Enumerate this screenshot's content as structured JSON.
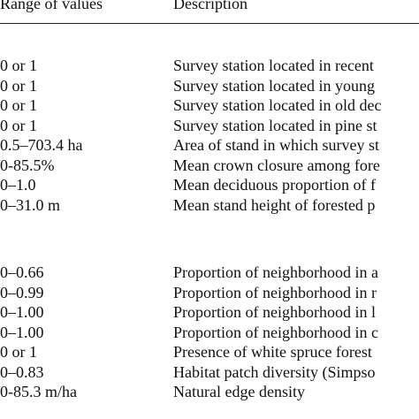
{
  "table": {
    "headers": {
      "range": "Range of values",
      "description": "Description"
    },
    "group1": [
      {
        "range": "0 or 1",
        "description": "Survey station located in recent"
      },
      {
        "range": "0 or 1",
        "description": "Survey station located in young"
      },
      {
        "range": "0 or 1",
        "description": "Survey station located in old dec"
      },
      {
        "range": "0 or 1",
        "description": "Survey station located in pine st"
      },
      {
        "range": "0.5–703.4 ha",
        "description": "Area of stand in which survey st"
      },
      {
        "range": "0-85.5%",
        "description": "Mean crown closure among fore"
      },
      {
        "range": "0–1.0",
        "description": "Mean deciduous proportion of f"
      },
      {
        "range": "0–31.0 m",
        "description": "Mean stand height of forested p"
      }
    ],
    "group2": [
      {
        "range": "0–0.66",
        "description": "Proportion of neighborhood in a"
      },
      {
        "range": "0–0.99",
        "description": "Proportion of neighborhood in r"
      },
      {
        "range": "0–1.00",
        "description": "Proportion of neighborhood in l"
      },
      {
        "range": "0–1.00",
        "description": "Proportion of neighborhood in c"
      },
      {
        "range": "0 or 1",
        "description": "Presence of white spruce forest"
      },
      {
        "range": "0–0.83",
        "description": "Habitat patch diversity (Simpso"
      },
      {
        "range": "0-85.3 m/ha",
        "description": "Natural edge density"
      }
    ]
  }
}
